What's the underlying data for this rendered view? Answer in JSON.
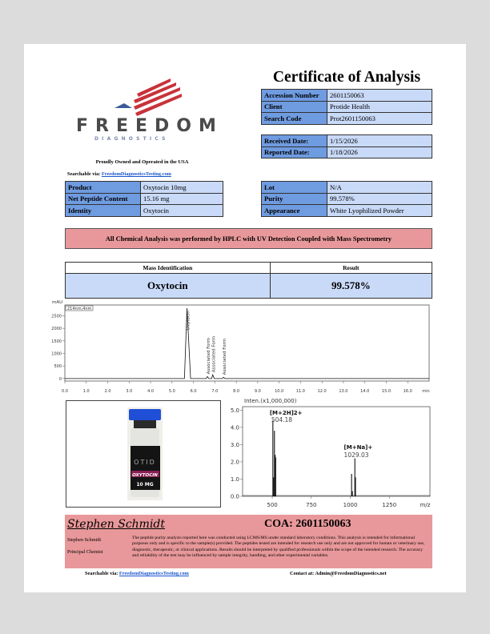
{
  "title": "Certificate of Analysis",
  "logo": {
    "word": "FREEDOM",
    "sub": "DIAGNOSTICS",
    "colors": {
      "stripes": "#c8323a",
      "eagle": "#3b5a9a"
    }
  },
  "tagline": "Proudly Owned and Operated in the USA",
  "searchable": {
    "label": "Searchable via:",
    "link": "FreedomDiagnosticsTesting.com"
  },
  "info": [
    {
      "k": "Accession Number",
      "v": "2601150063"
    },
    {
      "k": "Client",
      "v": "Protide Health"
    },
    {
      "k": "Search Code",
      "v": "Prot2601150063"
    }
  ],
  "dates": [
    {
      "k": "Received Date:",
      "v": "1/15/2026"
    },
    {
      "k": "Reported Date:",
      "v": "1/18/2026"
    }
  ],
  "product": [
    {
      "k": "Product",
      "v": "Oxytocin 10mg"
    },
    {
      "k": "Net Peptide Content",
      "v": "15.16 mg"
    },
    {
      "k": "Identity",
      "v": "Oxytocin"
    }
  ],
  "lot": [
    {
      "k": "Lot",
      "v": "N/A"
    },
    {
      "k": "Purity",
      "v": "99.578%"
    },
    {
      "k": "Appearance",
      "v": "White Lyophilized Powder"
    }
  ],
  "banner": "All Chemical Analysis was performed by HPLC with UV Detection Coupled with Mass Spectrometry",
  "mass": {
    "h1": "Mass Identification",
    "h2": "Result",
    "v1": "Oxytocin",
    "v2": "99.578%"
  },
  "vial": {
    "brand": "OTID",
    "name": "OXYTOCIN",
    "dose": "10 MG"
  },
  "chart_data": [
    {
      "type": "line",
      "ylabel": "mAU",
      "channel": "214nm,4nm",
      "xunit": "min",
      "xlim": [
        0,
        17
      ],
      "ylim": [
        -100,
        2930
      ],
      "xticks": [
        "0.0",
        "1.0",
        "2.0",
        "3.0",
        "4.0",
        "5.0",
        "6.0",
        "7.0",
        "8.0",
        "9.0",
        "10.0",
        "11.0",
        "12.0",
        "13.0",
        "14.0",
        "15.0",
        "16.0"
      ],
      "yticks": [
        "0",
        "500",
        "1000",
        "1500",
        "2000",
        "2500"
      ],
      "peaks": [
        {
          "label": "Oxytocin",
          "x": 5.7,
          "y": 2800
        },
        {
          "label": "Associated Form",
          "x": 6.65,
          "y": 80
        },
        {
          "label": "Associated Form",
          "x": 6.9,
          "y": 150
        },
        {
          "label": "Associated Form",
          "x": 7.4,
          "y": 50
        }
      ]
    },
    {
      "type": "bar",
      "ylabel": "Inten.(x1,000,000)",
      "xunit": "m/z",
      "xlim": [
        310,
        1510
      ],
      "ylim": [
        0,
        5.2
      ],
      "xticks": [
        "500",
        "750",
        "1000",
        "1250"
      ],
      "yticks": [
        "0.0",
        "1.0",
        "2.0",
        "3.0",
        "4.0",
        "5.0"
      ],
      "x": [
        504,
        509,
        514,
        519,
        522,
        1008,
        1013,
        1029,
        1033
      ],
      "values": [
        4.4,
        1.1,
        3.8,
        2.4,
        2.25,
        1.3,
        0.3,
        2.2,
        1.1
      ],
      "annotations": [
        {
          "label": "[M+2H]2+",
          "value": "504.18"
        },
        {
          "label": "[M+Na]+",
          "value": "1029.03"
        }
      ]
    }
  ],
  "signature": {
    "script": "Stephen Schmidt",
    "name": "Stephen Schmidt",
    "role": "Principal Chemist"
  },
  "coa": "COA: 2601150063",
  "disclaimer": "The peptide purity analysis reported here was conducted using LCMS/MS under standard laboratory conditions. This analysis is intended for informational purposes only and is specific to the sample(s) provided. The peptides tested are intended for research use only and are not approved for human or veterinary use, diagnostic, therapeutic, or clinical applications. Results should be interpreted by qualified professionals within the scope of the intended research. The accuracy and reliability of the test may be influenced by sample integrity, handling, and other experimental variables.",
  "footer": {
    "search_label": "Searchable via:",
    "search_link": "FreedomDiagnosticsTesting.com",
    "contact": "Contact at: Admin@FreedomDiagnostics.net"
  }
}
